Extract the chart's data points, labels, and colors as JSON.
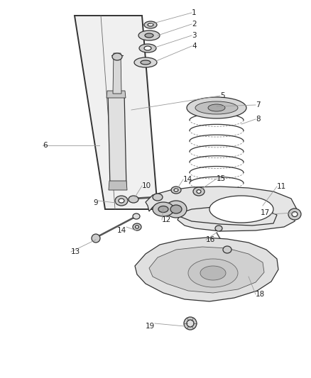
{
  "fig_width": 4.38,
  "fig_height": 5.33,
  "dpi": 100,
  "bg": "#ffffff",
  "line_color": "#333333",
  "label_color": "#222222",
  "leader_color": "#999999",
  "font_size": 7.5,
  "lw_thick": 1.4,
  "lw_med": 0.9,
  "lw_thin": 0.6
}
